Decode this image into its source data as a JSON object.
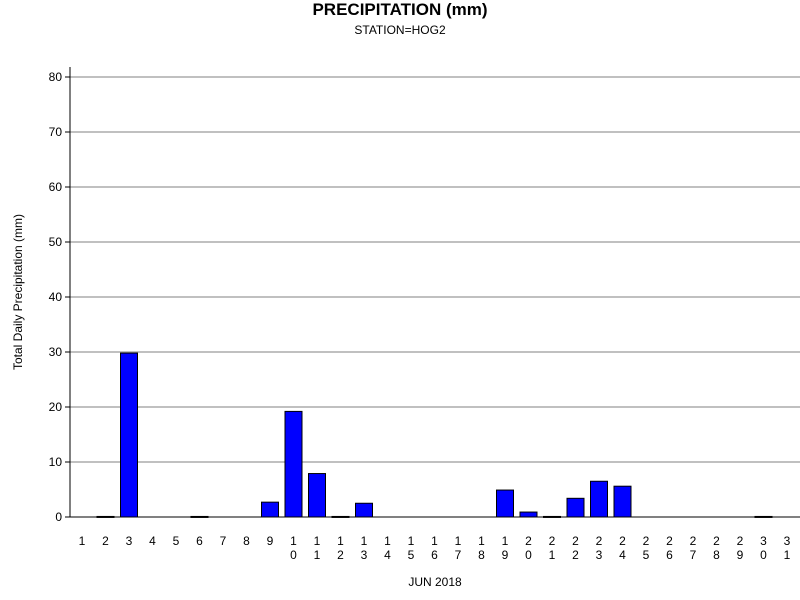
{
  "chart_data": {
    "type": "bar",
    "title": "PRECIPITATION (mm)",
    "subtitle": "STATION=HOG2",
    "xlabel": "JUN 2018",
    "ylabel": "Total Daily Precipitation (mm)",
    "ylim": [
      0,
      80
    ],
    "yticks": [
      0,
      10,
      20,
      30,
      40,
      50,
      60,
      70,
      80
    ],
    "grid": true,
    "categories": [
      "1",
      "2",
      "3",
      "4",
      "5",
      "6",
      "7",
      "8",
      "9",
      "10",
      "11",
      "12",
      "13",
      "14",
      "15",
      "16",
      "17",
      "18",
      "19",
      "20",
      "21",
      "22",
      "23",
      "24",
      "25",
      "26",
      "27",
      "28",
      "29",
      "30",
      "31"
    ],
    "values": [
      0,
      0.1,
      29.8,
      0,
      0,
      0.1,
      0,
      0,
      2.7,
      19.2,
      7.9,
      0.1,
      2.5,
      0,
      0,
      0,
      0,
      0,
      4.9,
      0.9,
      0.1,
      3.4,
      6.5,
      5.6,
      0,
      0,
      0,
      0,
      0,
      0.1,
      0
    ],
    "bar_color": "#0000ff"
  }
}
